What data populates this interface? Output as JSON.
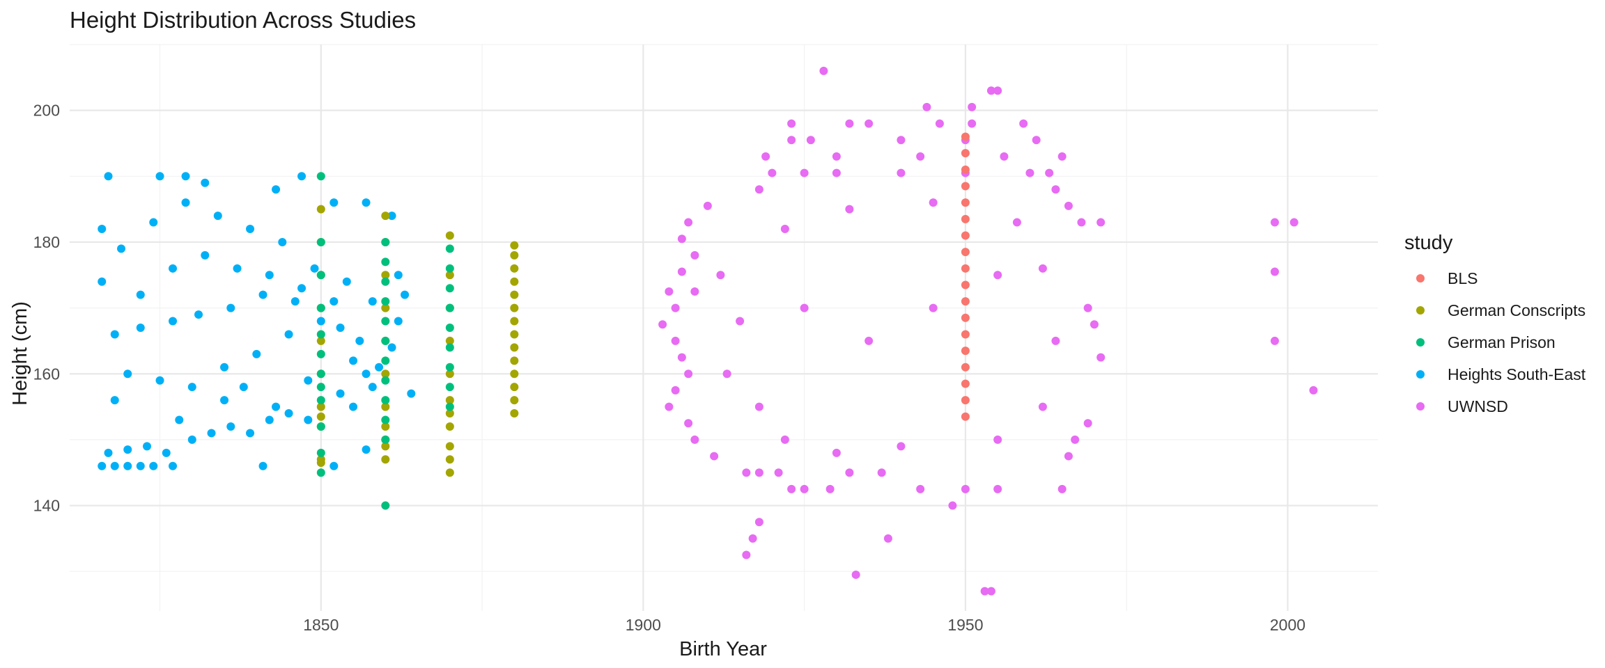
{
  "chart_data": {
    "type": "scatter",
    "title": "Height Distribution Across Studies",
    "xlabel": "Birth Year",
    "ylabel": "Height (cm)",
    "xlim": [
      1811,
      2014
    ],
    "ylim": [
      124,
      210
    ],
    "x_ticks": [
      1850,
      1900,
      1950,
      2000
    ],
    "y_ticks": [
      140,
      160,
      180,
      200
    ],
    "grid": true,
    "legend_title": "study",
    "legend_position": "right",
    "series": [
      {
        "name": "BLS",
        "color": "#F8766D",
        "points": [
          [
            1950,
            153.5
          ],
          [
            1950,
            156
          ],
          [
            1950,
            158.5
          ],
          [
            1950,
            161
          ],
          [
            1950,
            163.5
          ],
          [
            1950,
            166
          ],
          [
            1950,
            168.5
          ],
          [
            1950,
            171
          ],
          [
            1950,
            173.5
          ],
          [
            1950,
            176
          ],
          [
            1950,
            178.5
          ],
          [
            1950,
            181
          ],
          [
            1950,
            183.5
          ],
          [
            1950,
            186
          ],
          [
            1950,
            188.5
          ],
          [
            1950,
            191
          ],
          [
            1950,
            193.5
          ],
          [
            1950,
            196
          ]
        ]
      },
      {
        "name": "German Conscripts",
        "color": "#A3A500",
        "points": [
          [
            1850,
            146.5
          ],
          [
            1850,
            147
          ],
          [
            1850,
            152
          ],
          [
            1850,
            153.5
          ],
          [
            1850,
            155
          ],
          [
            1850,
            160
          ],
          [
            1850,
            165
          ],
          [
            1850,
            170
          ],
          [
            1850,
            175
          ],
          [
            1850,
            180
          ],
          [
            1850,
            185
          ],
          [
            1860,
            147
          ],
          [
            1860,
            149
          ],
          [
            1860,
            150
          ],
          [
            1860,
            152
          ],
          [
            1860,
            155
          ],
          [
            1860,
            160
          ],
          [
            1860,
            165
          ],
          [
            1860,
            170
          ],
          [
            1860,
            175
          ],
          [
            1860,
            180
          ],
          [
            1860,
            184
          ],
          [
            1870,
            145
          ],
          [
            1870,
            147
          ],
          [
            1870,
            149
          ],
          [
            1870,
            152
          ],
          [
            1870,
            154
          ],
          [
            1870,
            156
          ],
          [
            1870,
            160
          ],
          [
            1870,
            165
          ],
          [
            1870,
            170
          ],
          [
            1870,
            175
          ],
          [
            1870,
            181
          ],
          [
            1880,
            154
          ],
          [
            1880,
            156
          ],
          [
            1880,
            158
          ],
          [
            1880,
            160
          ],
          [
            1880,
            162
          ],
          [
            1880,
            164
          ],
          [
            1880,
            166
          ],
          [
            1880,
            168
          ],
          [
            1880,
            170
          ],
          [
            1880,
            172
          ],
          [
            1880,
            174
          ],
          [
            1880,
            176
          ],
          [
            1880,
            178
          ],
          [
            1880,
            179.5
          ]
        ]
      },
      {
        "name": "German Prison",
        "color": "#00BF7D",
        "points": [
          [
            1850,
            145
          ],
          [
            1850,
            148
          ],
          [
            1850,
            152
          ],
          [
            1850,
            156
          ],
          [
            1850,
            158
          ],
          [
            1850,
            160
          ],
          [
            1850,
            163
          ],
          [
            1850,
            166
          ],
          [
            1850,
            170
          ],
          [
            1850,
            175
          ],
          [
            1850,
            180
          ],
          [
            1850,
            190
          ],
          [
            1860,
            140
          ],
          [
            1860,
            150
          ],
          [
            1860,
            153
          ],
          [
            1860,
            156
          ],
          [
            1860,
            159
          ],
          [
            1860,
            162
          ],
          [
            1860,
            165
          ],
          [
            1860,
            168
          ],
          [
            1860,
            171
          ],
          [
            1860,
            174
          ],
          [
            1860,
            177
          ],
          [
            1860,
            180
          ],
          [
            1870,
            155
          ],
          [
            1870,
            158
          ],
          [
            1870,
            161
          ],
          [
            1870,
            164
          ],
          [
            1870,
            167
          ],
          [
            1870,
            170
          ],
          [
            1870,
            173
          ],
          [
            1870,
            176
          ],
          [
            1870,
            179
          ]
        ]
      },
      {
        "name": "Heights South-East",
        "color": "#00B0F6",
        "points": [
          [
            1816,
            146
          ],
          [
            1818,
            146
          ],
          [
            1820,
            146
          ],
          [
            1822,
            146
          ],
          [
            1824,
            146
          ],
          [
            1827,
            146
          ],
          [
            1841,
            146
          ],
          [
            1852,
            146
          ],
          [
            1817,
            148
          ],
          [
            1820,
            148.5
          ],
          [
            1823,
            149
          ],
          [
            1826,
            148
          ],
          [
            1830,
            150
          ],
          [
            1833,
            151
          ],
          [
            1836,
            152
          ],
          [
            1839,
            151
          ],
          [
            1842,
            153
          ],
          [
            1845,
            154
          ],
          [
            1848,
            153
          ],
          [
            1843,
            155
          ],
          [
            1835,
            156
          ],
          [
            1864,
            157
          ],
          [
            1857,
            148.5
          ],
          [
            1855,
            155
          ],
          [
            1853,
            157
          ],
          [
            1858,
            158
          ],
          [
            1817,
            190
          ],
          [
            1825,
            190
          ],
          [
            1829,
            190
          ],
          [
            1832,
            189
          ],
          [
            1843,
            188
          ],
          [
            1847,
            190
          ],
          [
            1852,
            186
          ],
          [
            1857,
            186
          ],
          [
            1861,
            184
          ],
          [
            1816,
            182
          ],
          [
            1862,
            175
          ],
          [
            1863,
            172
          ],
          [
            1862,
            168
          ],
          [
            1861,
            164
          ],
          [
            1859,
            161
          ],
          [
            1857,
            160
          ],
          [
            1855,
            162
          ],
          [
            1853,
            167
          ],
          [
            1850,
            168
          ],
          [
            1846,
            171
          ],
          [
            1841,
            172
          ],
          [
            1836,
            170
          ],
          [
            1831,
            169
          ],
          [
            1827,
            168
          ],
          [
            1822,
            167
          ],
          [
            1818,
            166
          ],
          [
            1816,
            174
          ],
          [
            1819,
            179
          ],
          [
            1824,
            183
          ],
          [
            1829,
            186
          ],
          [
            1834,
            184
          ],
          [
            1839,
            182
          ],
          [
            1844,
            180
          ],
          [
            1849,
            176
          ],
          [
            1854,
            174
          ],
          [
            1858,
            171
          ],
          [
            1820,
            160
          ],
          [
            1825,
            159
          ],
          [
            1830,
            158
          ],
          [
            1835,
            161
          ],
          [
            1840,
            163
          ],
          [
            1845,
            166
          ],
          [
            1822,
            172
          ],
          [
            1827,
            176
          ],
          [
            1832,
            178
          ],
          [
            1837,
            176
          ],
          [
            1842,
            175
          ],
          [
            1847,
            173
          ],
          [
            1852,
            171
          ],
          [
            1856,
            165
          ],
          [
            1818,
            156
          ],
          [
            1828,
            153
          ],
          [
            1838,
            158
          ],
          [
            1848,
            159
          ]
        ]
      },
      {
        "name": "UWNSD",
        "color": "#E76BF3",
        "points": [
          [
            1928,
            206
          ],
          [
            1954,
            203
          ],
          [
            1955,
            203
          ],
          [
            1944,
            200.5
          ],
          [
            1951,
            200.5
          ],
          [
            1923,
            198
          ],
          [
            1932,
            198
          ],
          [
            1935,
            198
          ],
          [
            1946,
            198
          ],
          [
            1951,
            198
          ],
          [
            1959,
            198
          ],
          [
            1923,
            195.5
          ],
          [
            1926,
            195.5
          ],
          [
            1940,
            195.5
          ],
          [
            1950,
            195.5
          ],
          [
            1961,
            195.5
          ],
          [
            1919,
            193
          ],
          [
            1930,
            193
          ],
          [
            1943,
            193
          ],
          [
            1956,
            193
          ],
          [
            1965,
            193
          ],
          [
            1920,
            190.5
          ],
          [
            1925,
            190.5
          ],
          [
            1930,
            190.5
          ],
          [
            1940,
            190.5
          ],
          [
            1950,
            190.5
          ],
          [
            1960,
            190.5
          ],
          [
            1963,
            190.5
          ],
          [
            1918,
            188
          ],
          [
            1964,
            188
          ],
          [
            1910,
            185.5
          ],
          [
            1966,
            185.5
          ],
          [
            1907,
            183
          ],
          [
            1968,
            183
          ],
          [
            1971,
            183
          ],
          [
            1998,
            183
          ],
          [
            2001,
            183
          ],
          [
            1906,
            180.5
          ],
          [
            1908,
            178
          ],
          [
            1906,
            175.5
          ],
          [
            1998,
            175.5
          ],
          [
            1904,
            172.5
          ],
          [
            1908,
            172.5
          ],
          [
            1905,
            170
          ],
          [
            1969,
            170
          ],
          [
            1903,
            167.5
          ],
          [
            1970,
            167.5
          ],
          [
            1905,
            165
          ],
          [
            1998,
            165
          ],
          [
            1906,
            162.5
          ],
          [
            1971,
            162.5
          ],
          [
            1907,
            160
          ],
          [
            1905,
            157.5
          ],
          [
            2004,
            157.5
          ],
          [
            1904,
            155
          ],
          [
            1907,
            152.5
          ],
          [
            1969,
            152.5
          ],
          [
            1908,
            150
          ],
          [
            1967,
            150
          ],
          [
            1911,
            147.5
          ],
          [
            1966,
            147.5
          ],
          [
            1916,
            145
          ],
          [
            1918,
            145
          ],
          [
            1921,
            145
          ],
          [
            1932,
            145
          ],
          [
            1937,
            145
          ],
          [
            1923,
            142.5
          ],
          [
            1925,
            142.5
          ],
          [
            1929,
            142.5
          ],
          [
            1943,
            142.5
          ],
          [
            1950,
            142.5
          ],
          [
            1955,
            142.5
          ],
          [
            1965,
            142.5
          ],
          [
            1948,
            140
          ],
          [
            1918,
            137.5
          ],
          [
            1917,
            135
          ],
          [
            1938,
            135
          ],
          [
            1916,
            132.5
          ],
          [
            1933,
            129.5
          ],
          [
            1953,
            127
          ],
          [
            1954,
            127
          ],
          [
            1912,
            175
          ],
          [
            1915,
            168
          ],
          [
            1913,
            160
          ],
          [
            1918,
            155
          ],
          [
            1922,
            150
          ],
          [
            1930,
            148
          ],
          [
            1940,
            149
          ],
          [
            1955,
            150
          ],
          [
            1962,
            155
          ],
          [
            1964,
            165
          ],
          [
            1962,
            176
          ],
          [
            1958,
            183
          ],
          [
            1945,
            186
          ],
          [
            1932,
            185
          ],
          [
            1922,
            182
          ],
          [
            1925,
            170
          ],
          [
            1935,
            165
          ],
          [
            1945,
            170
          ],
          [
            1955,
            175
          ]
        ]
      }
    ]
  }
}
